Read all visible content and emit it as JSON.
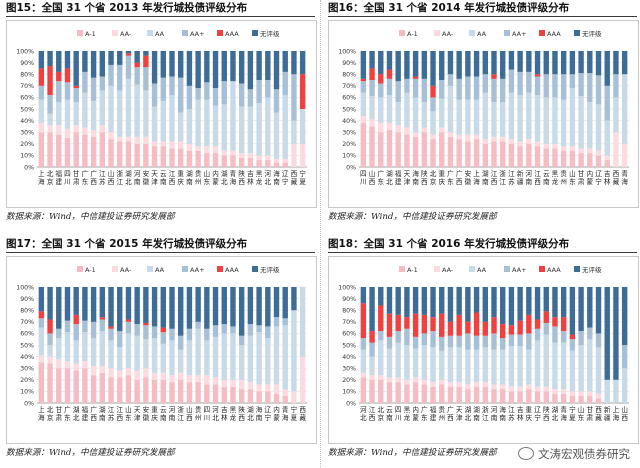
{
  "colors": {
    "A-1": "#f6bcc4",
    "AA-": "#fcdbe0",
    "AA": "#c8d9e8",
    "AA+": "#a8c0d6",
    "AAA": "#f04040",
    "无评级": "#3d6c97"
  },
  "legend": [
    "A-1",
    "AA-",
    "AA",
    "AA+",
    "AAA",
    "无评级"
  ],
  "source_text": "数据来源：Wind，中信建投证券研究发展部",
  "watermark": "文涛宏观债券研究",
  "chart_data": [
    {
      "type": "stacked-bar-100",
      "title": "图15：全国 31 个省 2013 年发行城投债评级分布",
      "ylim": [
        0,
        100
      ],
      "yticks": [
        "0%",
        "10%",
        "20%",
        "30%",
        "40%",
        "50%",
        "60%",
        "70%",
        "80%",
        "90%",
        "100%"
      ],
      "categories": [
        "上海",
        "北京",
        "福建",
        "四川",
        "甘肃",
        "广东",
        "广西",
        "江苏",
        "山西",
        "浙江",
        "湖北",
        "河南",
        "安徽",
        "天津",
        "云南",
        "江西",
        "重庆",
        "湖南",
        "贵州",
        "山东",
        "内蒙",
        "湖北",
        "青海",
        "陕西",
        "吉林",
        "黑龙",
        "河北",
        "海南",
        "辽宁",
        "西藏",
        "宁夏"
      ],
      "series": [
        {
          "name": "A-1",
          "values": [
            30,
            30,
            28,
            25,
            30,
            28,
            26,
            30,
            24,
            22,
            22,
            20,
            20,
            18,
            18,
            16,
            16,
            14,
            14,
            12,
            12,
            10,
            10,
            8,
            8,
            6,
            6,
            4,
            4,
            0,
            0
          ]
        },
        {
          "name": "AA-",
          "values": [
            8,
            6,
            8,
            8,
            6,
            6,
            6,
            6,
            6,
            4,
            4,
            6,
            6,
            4,
            4,
            6,
            6,
            6,
            4,
            6,
            6,
            4,
            4,
            4,
            4,
            4,
            4,
            3,
            3,
            20,
            20
          ]
        },
        {
          "name": "AA",
          "values": [
            20,
            10,
            20,
            25,
            20,
            30,
            25,
            30,
            40,
            40,
            50,
            45,
            40,
            30,
            35,
            40,
            25,
            30,
            40,
            40,
            35,
            40,
            60,
            40,
            40,
            45,
            50,
            40,
            55,
            20,
            30
          ]
        },
        {
          "name": "AA+",
          "values": [
            12,
            16,
            18,
            15,
            12,
            18,
            20,
            12,
            18,
            22,
            20,
            15,
            20,
            20,
            20,
            16,
            30,
            20,
            10,
            15,
            15,
            20,
            0,
            20,
            15,
            20,
            15,
            20,
            20,
            40,
            0
          ]
        },
        {
          "name": "AAA",
          "values": [
            15,
            25,
            8,
            12,
            2,
            0,
            0,
            0,
            0,
            0,
            2,
            4,
            10,
            0,
            0,
            0,
            0,
            0,
            0,
            0,
            0,
            0,
            0,
            0,
            0,
            0,
            0,
            0,
            0,
            0,
            30
          ]
        },
        {
          "name": "无评级",
          "values": [
            15,
            13,
            18,
            15,
            30,
            18,
            23,
            22,
            12,
            12,
            2,
            10,
            4,
            28,
            23,
            22,
            23,
            30,
            32,
            27,
            32,
            26,
            26,
            28,
            33,
            25,
            25,
            33,
            18,
            20,
            20
          ]
        }
      ]
    },
    {
      "type": "stacked-bar-100",
      "title": "图16：全国 31 个省 2014 年发行城投债评级分布",
      "ylim": [
        0,
        100
      ],
      "yticks": [
        "0%",
        "10%",
        "20%",
        "30%",
        "40%",
        "50%",
        "60%",
        "70%",
        "80%",
        "90%",
        "100%"
      ],
      "categories": [
        "四川",
        "山西",
        "广东",
        "湖北",
        "福建",
        "天津",
        "海南",
        "陕西",
        "北京",
        "重庆",
        "广东",
        "广西",
        "安徽",
        "上海",
        "湖南",
        "江西",
        "浙江",
        "江苏",
        "新疆",
        "河南",
        "江西",
        "云南",
        "黑龙",
        "贵州",
        "山东",
        "甘肃",
        "内蒙",
        "辽宁",
        "吉林",
        "西藏",
        "青海"
      ],
      "series": [
        {
          "name": "A-1",
          "values": [
            38,
            35,
            30,
            32,
            30,
            28,
            26,
            30,
            24,
            30,
            26,
            24,
            22,
            24,
            20,
            22,
            22,
            20,
            18,
            20,
            18,
            16,
            16,
            14,
            14,
            12,
            12,
            10,
            6,
            0,
            0
          ]
        },
        {
          "name": "AA-",
          "values": [
            6,
            6,
            8,
            6,
            6,
            6,
            4,
            4,
            4,
            4,
            4,
            4,
            6,
            4,
            4,
            4,
            4,
            4,
            4,
            4,
            4,
            4,
            4,
            4,
            4,
            4,
            4,
            4,
            4,
            30,
            20
          ]
        },
        {
          "name": "AA",
          "values": [
            20,
            20,
            22,
            24,
            20,
            30,
            30,
            22,
            20,
            25,
            40,
            30,
            30,
            30,
            40,
            30,
            30,
            40,
            40,
            40,
            40,
            40,
            40,
            40,
            50,
            45,
            40,
            40,
            30,
            30,
            60
          ]
        },
        {
          "name": "AA+",
          "values": [
            10,
            14,
            12,
            14,
            18,
            12,
            16,
            20,
            12,
            16,
            10,
            18,
            20,
            20,
            16,
            20,
            20,
            20,
            20,
            18,
            16,
            20,
            20,
            22,
            12,
            20,
            25,
            25,
            30,
            20,
            0
          ]
        },
        {
          "name": "AAA",
          "values": [
            2,
            10,
            8,
            8,
            0,
            0,
            2,
            0,
            10,
            0,
            0,
            0,
            0,
            0,
            0,
            4,
            0,
            0,
            0,
            0,
            2,
            0,
            0,
            0,
            0,
            0,
            0,
            0,
            0,
            0,
            0
          ]
        },
        {
          "name": "无评级",
          "values": [
            24,
            15,
            20,
            16,
            26,
            24,
            22,
            24,
            30,
            25,
            20,
            24,
            22,
            22,
            20,
            20,
            24,
            16,
            18,
            18,
            20,
            20,
            20,
            20,
            20,
            19,
            19,
            21,
            30,
            20,
            20
          ]
        }
      ]
    },
    {
      "type": "stacked-bar-100",
      "title": "图17：全国 31 个省 2015 年发行城投债评级分布",
      "ylim": [
        0,
        100
      ],
      "yticks": [
        "0%",
        "10%",
        "20%",
        "30%",
        "40%",
        "50%",
        "60%",
        "70%",
        "80%",
        "90%",
        "100%"
      ],
      "categories": [
        "上海",
        "北京",
        "甘肃",
        "广东",
        "湖北",
        "福建",
        "广西",
        "湖南",
        "江苏",
        "江西",
        "山东",
        "天津",
        "安徽",
        "重庆",
        "云南",
        "河南",
        "浙江",
        "山西",
        "贵州",
        "四川",
        "河北",
        "吉林",
        "黑龙",
        "陕西",
        "湖北",
        "海南",
        "辽宁",
        "内蒙",
        "青海",
        "宁夏",
        "西藏"
      ],
      "series": [
        {
          "name": "A-1",
          "values": [
            35,
            34,
            30,
            30,
            28,
            30,
            24,
            26,
            22,
            22,
            24,
            20,
            22,
            20,
            20,
            18,
            20,
            18,
            18,
            16,
            16,
            14,
            14,
            12,
            12,
            10,
            10,
            8,
            6,
            0,
            0
          ]
        },
        {
          "name": "AA-",
          "values": [
            6,
            6,
            8,
            6,
            6,
            6,
            8,
            6,
            8,
            6,
            6,
            8,
            8,
            6,
            6,
            6,
            6,
            6,
            6,
            8,
            6,
            6,
            6,
            8,
            6,
            6,
            6,
            8,
            6,
            10,
            40
          ]
        },
        {
          "name": "AA",
          "values": [
            24,
            10,
            18,
            25,
            20,
            25,
            24,
            30,
            24,
            20,
            30,
            30,
            25,
            30,
            25,
            30,
            20,
            30,
            40,
            30,
            35,
            40,
            40,
            30,
            40,
            45,
            40,
            50,
            55,
            70,
            60
          ]
        },
        {
          "name": "AA+",
          "values": [
            8,
            10,
            8,
            10,
            14,
            10,
            14,
            10,
            10,
            14,
            10,
            10,
            12,
            10,
            10,
            10,
            12,
            10,
            6,
            10,
            10,
            8,
            6,
            8,
            10,
            6,
            10,
            8,
            6,
            0,
            0
          ]
        },
        {
          "name": "AAA",
          "values": [
            6,
            12,
            0,
            0,
            8,
            0,
            0,
            2,
            2,
            0,
            2,
            0,
            2,
            0,
            4,
            0,
            0,
            0,
            0,
            0,
            0,
            0,
            0,
            0,
            0,
            0,
            0,
            0,
            0,
            0,
            0
          ]
        },
        {
          "name": "无评级",
          "values": [
            21,
            28,
            36,
            29,
            24,
            29,
            30,
            26,
            34,
            38,
            28,
            32,
            31,
            34,
            35,
            36,
            42,
            36,
            30,
            36,
            33,
            32,
            34,
            42,
            32,
            33,
            34,
            26,
            27,
            20,
            0
          ]
        }
      ]
    },
    {
      "type": "stacked-bar-100",
      "title": "图18：全国 31 个省 2016 年发行城投债评级分布",
      "ylim": [
        0,
        100
      ],
      "yticks": [
        "0%",
        "10%",
        "20%",
        "30%",
        "40%",
        "50%",
        "60%",
        "70%",
        "80%",
        "90%",
        "100%"
      ],
      "categories": [
        "河北",
        "江西",
        "北京",
        "云南",
        "四川",
        "黑龙",
        "内蒙",
        "广东",
        "福建",
        "贵州",
        "广西",
        "天津",
        "湖北",
        "湖南",
        "浙江",
        "河南",
        "海南",
        "江苏",
        "吉林",
        "重庆",
        "辽宁",
        "陕西",
        "湖北",
        "青海",
        "宁夏",
        "山东",
        "甘肃",
        "西藏",
        "新疆",
        "上海",
        "山西"
      ],
      "series": [
        {
          "name": "A-1",
          "values": [
            22,
            20,
            20,
            18,
            18,
            16,
            18,
            16,
            14,
            16,
            14,
            14,
            12,
            14,
            14,
            12,
            12,
            10,
            10,
            12,
            10,
            10,
            8,
            8,
            6,
            6,
            6,
            4,
            0,
            0,
            0
          ]
        },
        {
          "name": "AA-",
          "values": [
            4,
            4,
            4,
            4,
            4,
            4,
            4,
            4,
            4,
            4,
            4,
            4,
            4,
            4,
            4,
            4,
            4,
            4,
            4,
            4,
            4,
            4,
            4,
            4,
            4,
            4,
            4,
            4,
            0,
            0,
            0
          ]
        },
        {
          "name": "AA",
          "values": [
            20,
            16,
            30,
            25,
            30,
            30,
            25,
            30,
            30,
            25,
            30,
            30,
            30,
            28,
            30,
            30,
            30,
            35,
            35,
            30,
            40,
            45,
            40,
            40,
            35,
            40,
            45,
            40,
            20,
            20,
            30
          ]
        },
        {
          "name": "AA+",
          "values": [
            10,
            12,
            8,
            10,
            10,
            14,
            10,
            10,
            14,
            12,
            10,
            10,
            14,
            12,
            10,
            14,
            10,
            10,
            10,
            14,
            10,
            10,
            14,
            10,
            10,
            12,
            10,
            12,
            0,
            0,
            20
          ]
        },
        {
          "name": "AAA",
          "values": [
            30,
            10,
            22,
            20,
            14,
            10,
            20,
            16,
            12,
            20,
            12,
            18,
            10,
            20,
            12,
            14,
            12,
            8,
            12,
            16,
            8,
            10,
            8,
            12,
            4,
            0,
            0,
            0,
            0,
            0,
            0
          ]
        },
        {
          "name": "无评级",
          "values": [
            14,
            38,
            16,
            23,
            24,
            26,
            23,
            24,
            26,
            23,
            30,
            24,
            30,
            22,
            30,
            26,
            32,
            33,
            29,
            24,
            28,
            21,
            26,
            26,
            41,
            38,
            35,
            40,
            80,
            80,
            50
          ]
        }
      ]
    }
  ]
}
